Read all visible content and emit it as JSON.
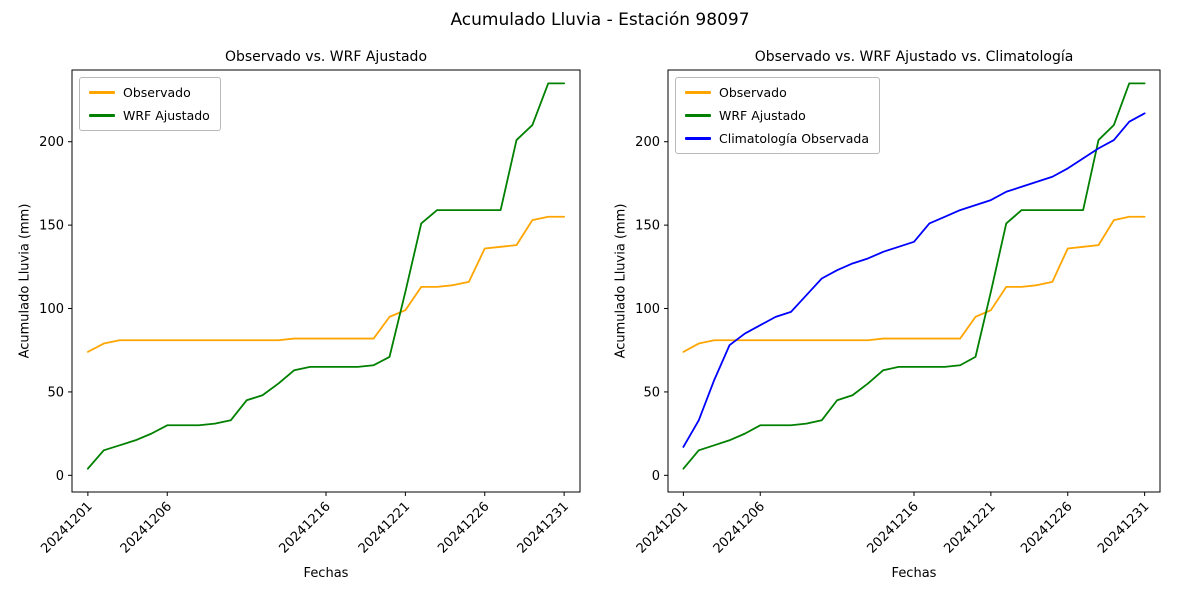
{
  "figure": {
    "title": "Acumulado Lluvia - Estación 98097"
  },
  "chart_data": [
    {
      "type": "line",
      "title": "Observado vs. WRF Ajustado",
      "xlabel": "Fechas",
      "ylabel": "Acumulado Lluvia (mm)",
      "legend_position": "upper left",
      "grid": false,
      "xlim": [
        0,
        32
      ],
      "ylim": [
        -10,
        243
      ],
      "y_ticks": [
        0,
        50,
        100,
        150,
        200
      ],
      "x_tick_days": [
        1,
        6,
        16,
        21,
        26,
        31
      ],
      "x_ticklabels": [
        "20241201",
        "20241206",
        "20241216",
        "20241221",
        "20241226",
        "20241231"
      ],
      "x": [
        1,
        2,
        3,
        4,
        5,
        6,
        7,
        8,
        9,
        10,
        11,
        12,
        13,
        14,
        15,
        16,
        17,
        18,
        19,
        20,
        21,
        22,
        23,
        24,
        25,
        26,
        27,
        28,
        29,
        30,
        31
      ],
      "series": [
        {
          "name": "Observado",
          "color": "#FFA500",
          "values": [
            74,
            79,
            81,
            81,
            81,
            81,
            81,
            81,
            81,
            81,
            81,
            81,
            81,
            82,
            82,
            82,
            82,
            82,
            82,
            95,
            99,
            113,
            113,
            114,
            116,
            136,
            137,
            138,
            153,
            155,
            155
          ]
        },
        {
          "name": "WRF Ajustado",
          "color": "#008000",
          "values": [
            4,
            15,
            18,
            21,
            25,
            30,
            30,
            30,
            31,
            33,
            45,
            48,
            55,
            63,
            65,
            65,
            65,
            65,
            66,
            71,
            110,
            151,
            159,
            159,
            159,
            159,
            159,
            201,
            210,
            235,
            235
          ]
        }
      ]
    },
    {
      "type": "line",
      "title": "Observado vs. WRF Ajustado vs. Climatología",
      "xlabel": "Fechas",
      "ylabel": "Acumulado Lluvia (mm)",
      "legend_position": "upper left",
      "grid": false,
      "xlim": [
        0,
        32
      ],
      "ylim": [
        -10,
        243
      ],
      "y_ticks": [
        0,
        50,
        100,
        150,
        200
      ],
      "x_tick_days": [
        1,
        6,
        16,
        21,
        26,
        31
      ],
      "x_ticklabels": [
        "20241201",
        "20241206",
        "20241216",
        "20241221",
        "20241226",
        "20241231"
      ],
      "x": [
        1,
        2,
        3,
        4,
        5,
        6,
        7,
        8,
        9,
        10,
        11,
        12,
        13,
        14,
        15,
        16,
        17,
        18,
        19,
        20,
        21,
        22,
        23,
        24,
        25,
        26,
        27,
        28,
        29,
        30,
        31
      ],
      "series": [
        {
          "name": "Observado",
          "color": "#FFA500",
          "values": [
            74,
            79,
            81,
            81,
            81,
            81,
            81,
            81,
            81,
            81,
            81,
            81,
            81,
            82,
            82,
            82,
            82,
            82,
            82,
            95,
            99,
            113,
            113,
            114,
            116,
            136,
            137,
            138,
            153,
            155,
            155
          ]
        },
        {
          "name": "WRF Ajustado",
          "color": "#008000",
          "values": [
            4,
            15,
            18,
            21,
            25,
            30,
            30,
            30,
            31,
            33,
            45,
            48,
            55,
            63,
            65,
            65,
            65,
            65,
            66,
            71,
            110,
            151,
            159,
            159,
            159,
            159,
            159,
            201,
            210,
            235,
            235
          ]
        },
        {
          "name": "Climatología Observada",
          "color": "#0000FF",
          "values": [
            17,
            33,
            57,
            78,
            85,
            90,
            95,
            98,
            108,
            118,
            123,
            127,
            130,
            134,
            137,
            140,
            151,
            155,
            159,
            162,
            165,
            170,
            173,
            176,
            179,
            184,
            190,
            196,
            201,
            212,
            217
          ]
        }
      ]
    }
  ]
}
